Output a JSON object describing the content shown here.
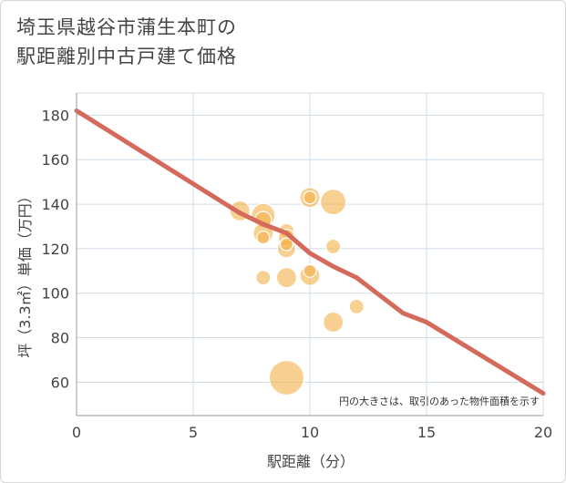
{
  "chart_data": {
    "type": "scatter",
    "title_lines": [
      "埼玉県越谷市蒲生本町の",
      "駅距離別中古戸建て価格"
    ],
    "xlabel": "駅距離（分）",
    "ylabel": "坪（3.3㎡）単価（万円）",
    "note": "円の大きさは、取引のあった物件面積を示す",
    "xlim": [
      0,
      20
    ],
    "ylim": [
      45,
      190
    ],
    "x_ticks": [
      0,
      5,
      10,
      15,
      20
    ],
    "y_ticks": [
      60,
      80,
      100,
      120,
      140,
      160,
      180
    ],
    "grid": true,
    "colors": {
      "bubble": "#f4b04a",
      "trend": "#d46a5b",
      "grid": "#d0dce6",
      "axis": "#999999"
    },
    "points": [
      {
        "x": 7,
        "y": 137,
        "size": 11
      },
      {
        "x": 8,
        "y": 135,
        "size": 13
      },
      {
        "x": 8,
        "y": 133,
        "size": 9
      },
      {
        "x": 8,
        "y": 127,
        "size": 11
      },
      {
        "x": 8,
        "y": 125,
        "size": 7
      },
      {
        "x": 8,
        "y": 107,
        "size": 8
      },
      {
        "x": 9,
        "y": 128,
        "size": 8
      },
      {
        "x": 9,
        "y": 125,
        "size": 9
      },
      {
        "x": 9,
        "y": 120,
        "size": 10
      },
      {
        "x": 9,
        "y": 122,
        "size": 7
      },
      {
        "x": 9,
        "y": 107,
        "size": 11
      },
      {
        "x": 9,
        "y": 62,
        "size": 19
      },
      {
        "x": 10,
        "y": 143,
        "size": 11
      },
      {
        "x": 10,
        "y": 143,
        "size": 7
      },
      {
        "x": 10,
        "y": 108,
        "size": 11
      },
      {
        "x": 10,
        "y": 110,
        "size": 7
      },
      {
        "x": 11,
        "y": 141,
        "size": 14
      },
      {
        "x": 11,
        "y": 121,
        "size": 8
      },
      {
        "x": 11,
        "y": 87,
        "size": 11
      },
      {
        "x": 12,
        "y": 94,
        "size": 8
      }
    ],
    "trend": {
      "name": "trend",
      "x": [
        0,
        7,
        8,
        9,
        10,
        11,
        12,
        13,
        14,
        15,
        20
      ],
      "y": [
        182,
        136,
        131,
        127,
        118,
        112,
        107,
        99,
        91,
        87,
        55
      ]
    }
  }
}
